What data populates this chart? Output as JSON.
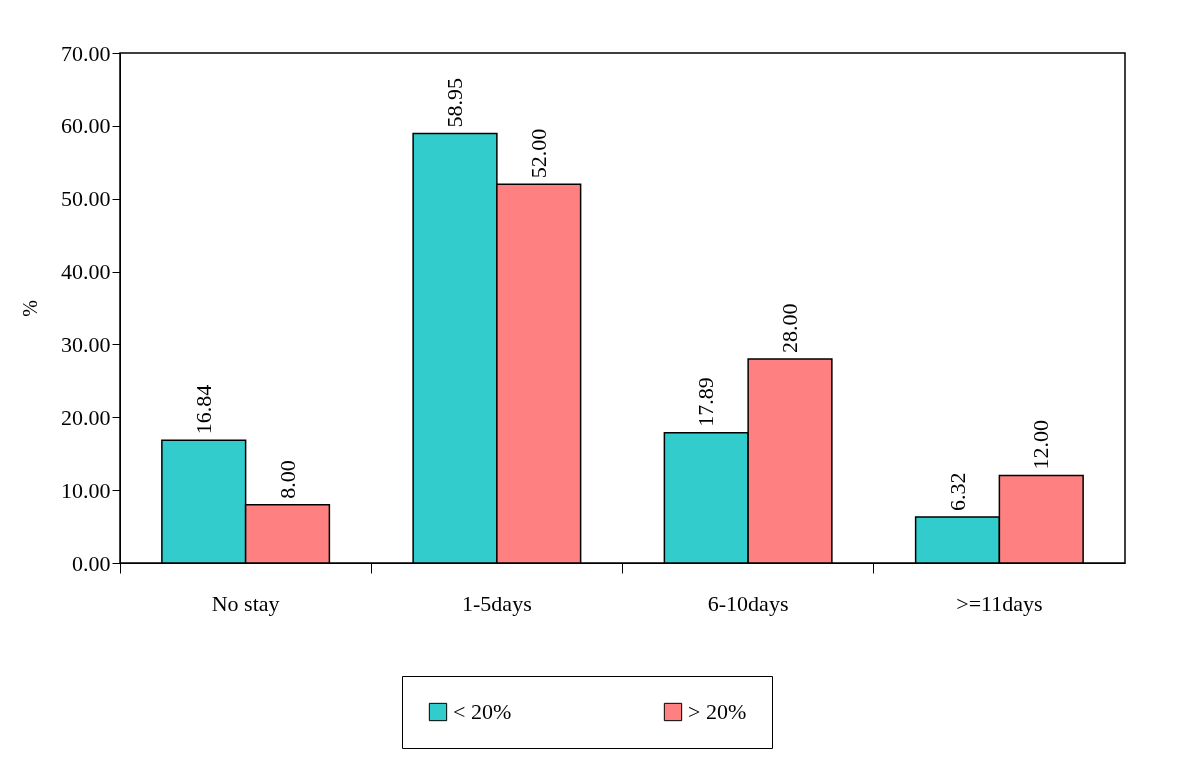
{
  "chart_data": {
    "type": "bar",
    "ylabel": "%",
    "categories": [
      "No stay",
      "1-5days",
      "6-10days",
      ">=11days"
    ],
    "series": [
      {
        "name": "< 20%",
        "color": "#33cccc",
        "values": [
          16.84,
          58.95,
          17.89,
          6.32
        ],
        "value_labels": [
          "16.84",
          "58.95",
          "17.89",
          "6.32"
        ]
      },
      {
        "name": "> 20%",
        "color": "#ff8080",
        "values": [
          8.0,
          52.0,
          28.0,
          12.0
        ],
        "value_labels": [
          "8.00",
          "52.00",
          "28.00",
          "12.00"
        ]
      }
    ],
    "ylim": [
      0,
      70
    ],
    "yticks": [
      {
        "value": 0,
        "label": "0.00"
      },
      {
        "value": 10,
        "label": "10.00"
      },
      {
        "value": 20,
        "label": "20.00"
      },
      {
        "value": 30,
        "label": "30.00"
      },
      {
        "value": 40,
        "label": "40.00"
      },
      {
        "value": 50,
        "label": "50.00"
      },
      {
        "value": 60,
        "label": "60.00"
      },
      {
        "value": 70,
        "label": "70.00"
      }
    ],
    "legend": "bottom",
    "grid": false
  }
}
